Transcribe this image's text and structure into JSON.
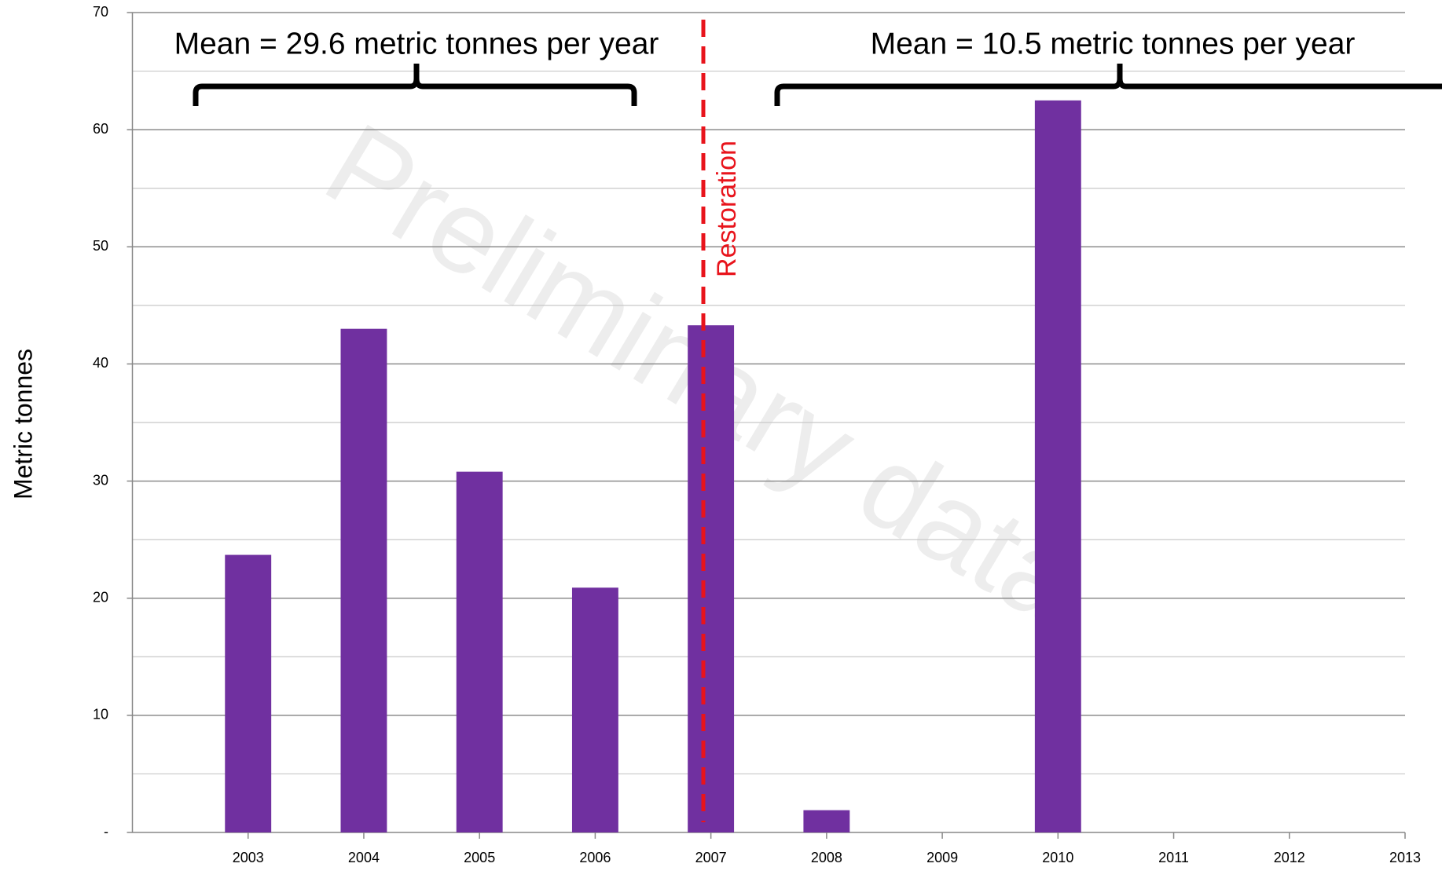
{
  "chart_data": {
    "type": "bar",
    "ylabel": "Metric tonnes",
    "watermark": "Preliminary data",
    "annotations": [
      "Mean = 29.6 metric tonnes per year",
      "Mean = 10.5 metric tonnes per year",
      "Restoration"
    ],
    "x": [
      2003,
      2004,
      2005,
      2006,
      2007,
      2008,
      2009,
      2010,
      2011,
      2012
    ],
    "values": [
      23.7,
      43,
      30.8,
      20.9,
      43.3,
      1.9,
      0,
      62.5,
      0,
      0
    ],
    "color": "#7030a0",
    "xlim": [
      2002,
      2013
    ],
    "xticks": [
      2003,
      2004,
      2005,
      2006,
      2007,
      2008,
      2009,
      2010,
      2011,
      2012,
      2013
    ],
    "ylim": [
      0,
      70
    ],
    "yticks": [
      {
        "value": 0,
        "label": "-"
      },
      10,
      20,
      30,
      40,
      50,
      60,
      70
    ],
    "minor_yticks": [
      5,
      15,
      25,
      35,
      45,
      55,
      65
    ],
    "grid": true
  }
}
